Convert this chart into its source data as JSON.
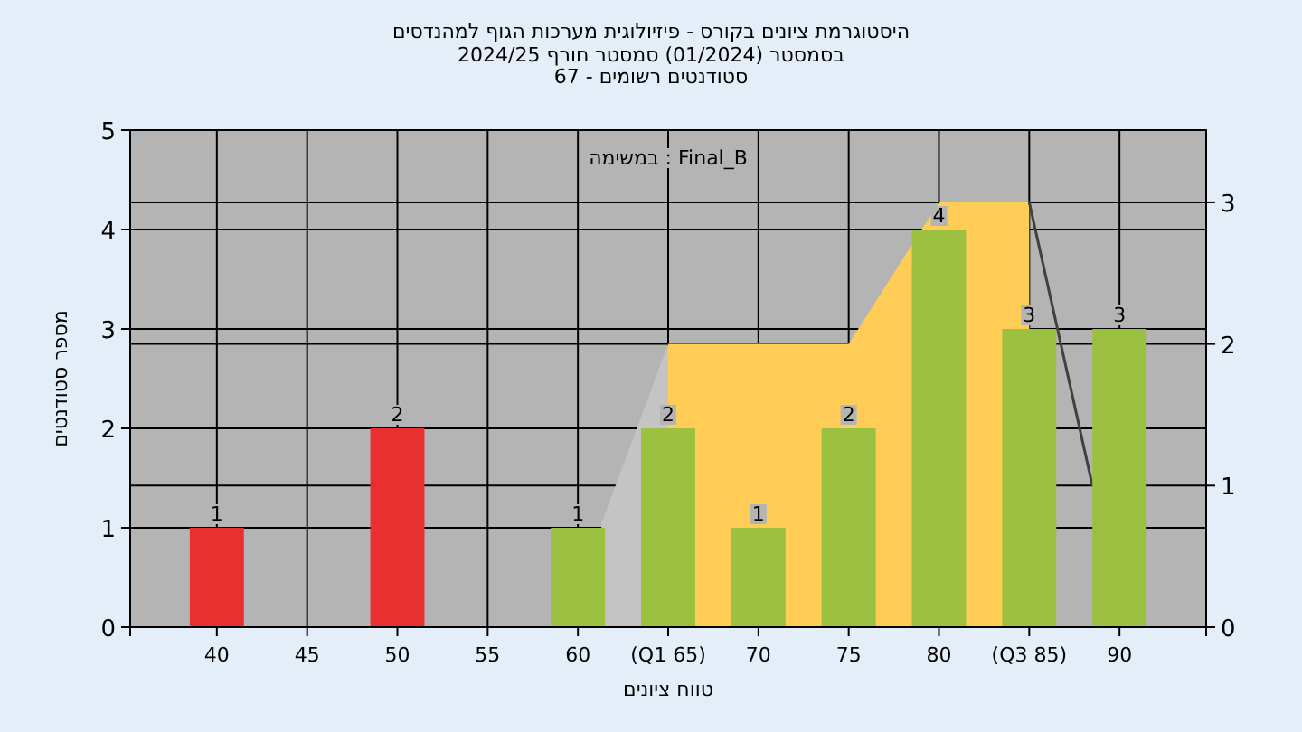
{
  "chart_data": {
    "type": "bar",
    "title": "היסטוגרמת ציונים בקורס - פיזיולוגית מערכות הגוף למהנדסים",
    "subtitle": "בסמסטר  (01/2024)  סמסטר חורף 2024/25\nסטודנטים רשומים - 67",
    "xlabel": "טווח ציונים",
    "ylabel": "מספר סטודנטים",
    "annotations": [
      "במשימה : Final_B"
    ],
    "xlim": [
      35.2,
      94.8
    ],
    "xticks": [
      40,
      45,
      50,
      55,
      60,
      {
        "value": 65,
        "label": "(Q1 65)"
      },
      70,
      75,
      80,
      {
        "value": 85,
        "label": "(Q3 85)"
      },
      90
    ],
    "ylim": [
      0,
      5
    ],
    "yticks": [
      0,
      1,
      2,
      3,
      4,
      5
    ],
    "y2lim": [
      0,
      3.51
    ],
    "y2ticks": [
      0,
      1,
      2,
      3
    ],
    "grid": true,
    "series": [
      {
        "type": "area",
        "axis": "y2",
        "x": [
          61.3,
          65
        ],
        "values": [
          0.73,
          2
        ],
        "color": "#c4c4c4"
      },
      {
        "type": "area",
        "axis": "y2",
        "x": [
          65,
          75,
          80,
          85
        ],
        "values": [
          2,
          2,
          3,
          3
        ],
        "color": "#ffcc55"
      },
      {
        "type": "line",
        "axis": "y2",
        "x": [
          85,
          88.5
        ],
        "values": [
          3,
          1
        ],
        "color": "#404040"
      },
      {
        "x": [
          40,
          50,
          60,
          65,
          70,
          75,
          80,
          85,
          90
        ],
        "values": [
          1,
          2,
          1,
          2,
          1,
          2,
          4,
          3,
          3
        ],
        "value_labels": [
          "1",
          "2",
          "1",
          "2",
          "1",
          "2",
          "4",
          "3",
          "3"
        ],
        "colors": [
          "#e83030",
          "#e83030",
          "#9cc040",
          "#9cc040",
          "#9cc040",
          "#9cc040",
          "#9cc040",
          "#9cc040",
          "#9cc040"
        ]
      }
    ]
  }
}
